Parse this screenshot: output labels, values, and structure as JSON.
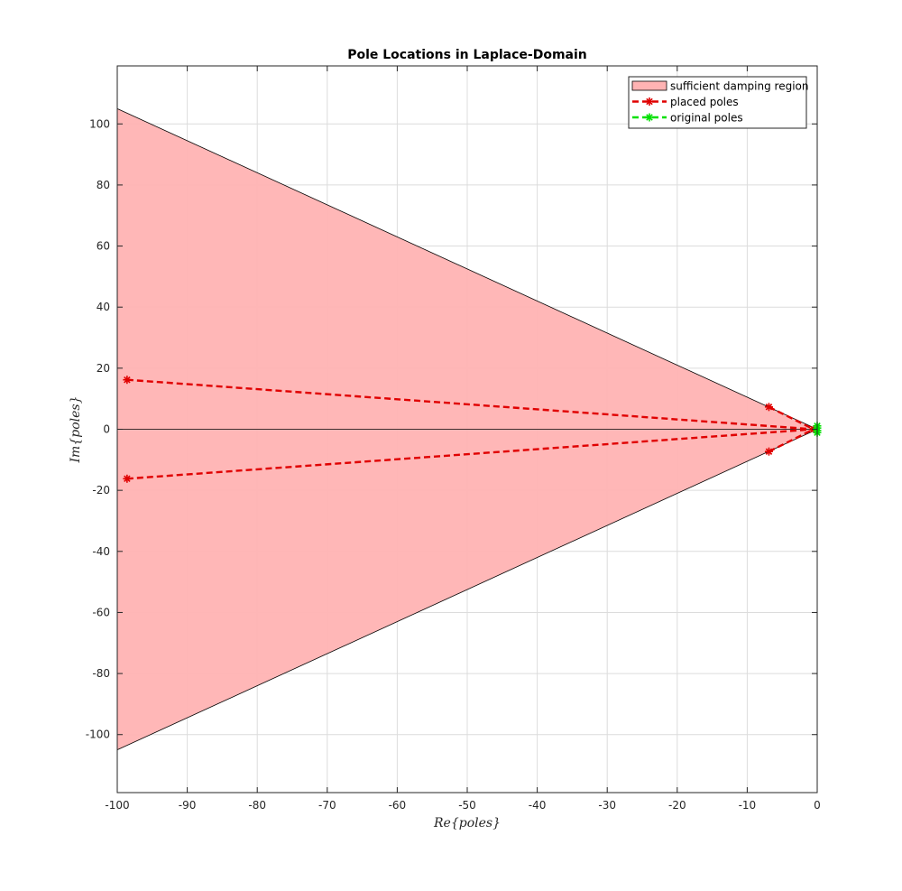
{
  "chart_data": {
    "type": "scatter",
    "title": "Pole Locations in Laplace-Domain",
    "xlabel": "Re{poles}",
    "ylabel": "Im{poles}",
    "xlim": [
      -100,
      0
    ],
    "ylim": [
      -119,
      119
    ],
    "xticks": [
      -100,
      -90,
      -80,
      -70,
      -60,
      -50,
      -40,
      -30,
      -20,
      -10,
      0
    ],
    "yticks": [
      -100,
      -80,
      -60,
      -40,
      -20,
      0,
      20,
      40,
      60,
      80,
      100
    ],
    "grid": true,
    "legend_position": "top-right",
    "region": {
      "name": "sufficient damping region",
      "color": "#ffb3b3",
      "vertices": [
        [
          0,
          0
        ],
        [
          -100,
          105
        ],
        [
          -100,
          -105
        ]
      ]
    },
    "series": [
      {
        "name": "placed poles",
        "color": "#e00000",
        "style": "dashed",
        "marker": "asterisk",
        "segments": [
          [
            [
              -98.6,
              16.2
            ],
            [
              -0.5,
              0
            ]
          ],
          [
            [
              -98.6,
              -16.2
            ],
            [
              -0.5,
              0
            ]
          ],
          [
            [
              -6.9,
              7.3
            ],
            [
              -0.5,
              0
            ]
          ],
          [
            [
              -6.9,
              -7.3
            ],
            [
              -0.5,
              0
            ]
          ]
        ],
        "points": [
          [
            -98.6,
            16.2
          ],
          [
            -98.6,
            -16.2
          ],
          [
            -6.9,
            7.3
          ],
          [
            -6.9,
            -7.3
          ],
          [
            -0.5,
            0
          ]
        ]
      },
      {
        "name": "original poles",
        "color": "#00e000",
        "style": "dashed",
        "marker": "asterisk",
        "segments": [
          [
            [
              0,
              1.1
            ],
            [
              0,
              -1.1
            ]
          ]
        ],
        "points": [
          [
            0,
            1.1
          ],
          [
            0,
            -1.1
          ],
          [
            0,
            0.4
          ],
          [
            0,
            -0.4
          ]
        ]
      }
    ]
  }
}
